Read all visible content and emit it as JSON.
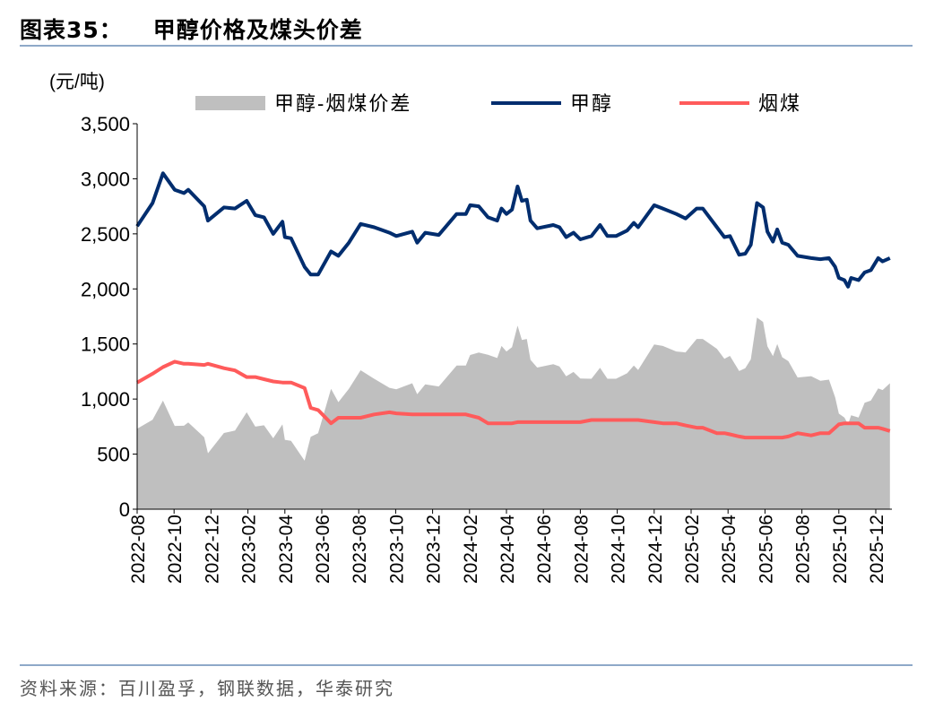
{
  "header": {
    "figure_no": "图表35：",
    "title": "甲醇价格及煤头价差"
  },
  "footer": {
    "source": "资料来源：百川盈孚，钢联数据，华泰研究"
  },
  "colors": {
    "spread": "#bfbfbf",
    "methanol": "#002d6e",
    "coal": "#ff5b5b",
    "rule": "#8ea9c8"
  },
  "chart_data": {
    "type": "line",
    "ylabel": "(元/吨)",
    "ylim": [
      0,
      3500
    ],
    "yticks": [
      "0",
      "500",
      "1,000",
      "1,500",
      "2,000",
      "2,500",
      "3,000",
      "3,500"
    ],
    "xticks": [
      "2022-08",
      "2022-10",
      "2022-12",
      "2023-02",
      "2023-04",
      "2023-06",
      "2023-08",
      "2023-10",
      "2023-12",
      "2024-02",
      "2024-04",
      "2024-06",
      "2024-08",
      "2024-10",
      "2024-12",
      "2025-02",
      "2025-04",
      "2025-06",
      "2025-08",
      "2025-10",
      "2025-12"
    ],
    "grid": false,
    "legend_position": "top",
    "dates": [
      "2022-08-01",
      "2022-08-26",
      "2022-09-13",
      "2022-10-02",
      "2022-10-17",
      "2022-10-24",
      "2022-11-20",
      "2022-11-26",
      "2022-12-22",
      "2023-01-10",
      "2023-01-29",
      "2023-02-13",
      "2023-02-27",
      "2023-03-12",
      "2023-03-27",
      "2023-04-01",
      "2023-04-11",
      "2023-05-03",
      "2023-05-13",
      "2023-05-25",
      "2023-06-16",
      "2023-06-28",
      "2023-07-15",
      "2023-08-04",
      "2023-08-26",
      "2023-09-21",
      "2023-10-02",
      "2023-10-28",
      "2023-11-06",
      "2023-11-19",
      "2023-12-11",
      "2024-01-10",
      "2024-01-25",
      "2024-02-02",
      "2024-02-16",
      "2024-03-01",
      "2024-03-16",
      "2024-03-23",
      "2024-04-01",
      "2024-04-10",
      "2024-04-19",
      "2024-04-26",
      "2024-05-04",
      "2024-05-10",
      "2024-05-21",
      "2024-06-17",
      "2024-06-27",
      "2024-07-08",
      "2024-07-20",
      "2024-08-01",
      "2024-08-19",
      "2024-09-03",
      "2024-09-15",
      "2024-09-29",
      "2024-10-17",
      "2024-10-28",
      "2024-11-05",
      "2024-12-01",
      "2024-12-15",
      "2025-01-07",
      "2025-01-22",
      "2025-02-10",
      "2025-02-20",
      "2025-03-13",
      "2025-03-25",
      "2025-04-04",
      "2025-04-19",
      "2025-04-29",
      "2025-05-08",
      "2025-05-18",
      "2025-05-28",
      "2025-06-05",
      "2025-06-14",
      "2025-06-21",
      "2025-06-29",
      "2025-07-09",
      "2025-07-24",
      "2025-08-16",
      "2025-08-31",
      "2025-09-15",
      "2025-09-25",
      "2025-10-01",
      "2025-10-10",
      "2025-10-16",
      "2025-10-21",
      "2025-11-03",
      "2025-11-13",
      "2025-11-23",
      "2025-12-05",
      "2025-12-12",
      "2025-12-24"
    ],
    "series": [
      {
        "name": "甲醇-烟煤价差",
        "kind": "area",
        "values": [
          730,
          812,
          986,
          756,
          758,
          788,
          654,
          508,
          692,
          714,
          880,
          750,
          762,
          644,
          770,
          630,
          620,
          440,
          658,
          690,
          1092,
          972,
          1092,
          1262,
          1184,
          1102,
          1088,
          1144,
          1044,
          1134,
          1114,
          1304,
          1304,
          1400,
          1422,
          1402,
          1372,
          1482,
          1432,
          1472,
          1666,
          1536,
          1546,
          1356,
          1286,
          1316,
          1296,
          1206,
          1246,
          1186,
          1184,
          1284,
          1184,
          1184,
          1234,
          1304,
          1264,
          1496,
          1482,
          1432,
          1424,
          1546,
          1546,
          1456,
          1366,
          1392,
          1254,
          1280,
          1360,
          1740,
          1700,
          1480,
          1390,
          1500,
          1380,
          1344,
          1196,
          1208,
          1166,
          1176,
          1016,
          868,
          832,
          772,
          852,
          832,
          966,
          986,
          1096,
          1082,
          1144
        ]
      },
      {
        "name": "甲醇",
        "kind": "line",
        "values": [
          2570,
          2780,
          3050,
          2900,
          2870,
          2900,
          2750,
          2620,
          2740,
          2730,
          2800,
          2670,
          2650,
          2500,
          2610,
          2470,
          2460,
          2200,
          2130,
          2130,
          2340,
          2300,
          2420,
          2590,
          2560,
          2510,
          2480,
          2520,
          2420,
          2510,
          2490,
          2680,
          2680,
          2760,
          2750,
          2650,
          2620,
          2730,
          2680,
          2720,
          2930,
          2800,
          2810,
          2620,
          2550,
          2580,
          2560,
          2470,
          2510,
          2450,
          2480,
          2580,
          2480,
          2480,
          2530,
          2600,
          2560,
          2760,
          2730,
          2680,
          2640,
          2730,
          2730,
          2560,
          2470,
          2480,
          2310,
          2320,
          2400,
          2780,
          2740,
          2520,
          2430,
          2540,
          2420,
          2400,
          2300,
          2280,
          2270,
          2280,
          2200,
          2100,
          2080,
          2020,
          2100,
          2080,
          2150,
          2170,
          2280,
          2250,
          2280
        ]
      },
      {
        "name": "烟煤",
        "kind": "line",
        "values": [
          1150,
          1230,
          1290,
          1340,
          1320,
          1320,
          1310,
          1320,
          1280,
          1260,
          1200,
          1200,
          1180,
          1160,
          1150,
          1150,
          1150,
          1100,
          920,
          900,
          780,
          830,
          830,
          830,
          860,
          880,
          870,
          860,
          860,
          860,
          860,
          860,
          860,
          850,
          830,
          780,
          780,
          780,
          780,
          780,
          790,
          790,
          790,
          790,
          790,
          790,
          790,
          790,
          790,
          790,
          810,
          810,
          810,
          810,
          810,
          810,
          810,
          790,
          780,
          780,
          760,
          740,
          740,
          690,
          690,
          680,
          660,
          650,
          650,
          650,
          650,
          650,
          650,
          650,
          650,
          660,
          690,
          670,
          690,
          690,
          740,
          770,
          780,
          780,
          780,
          780,
          740,
          740,
          740,
          730,
          710
        ]
      }
    ]
  }
}
